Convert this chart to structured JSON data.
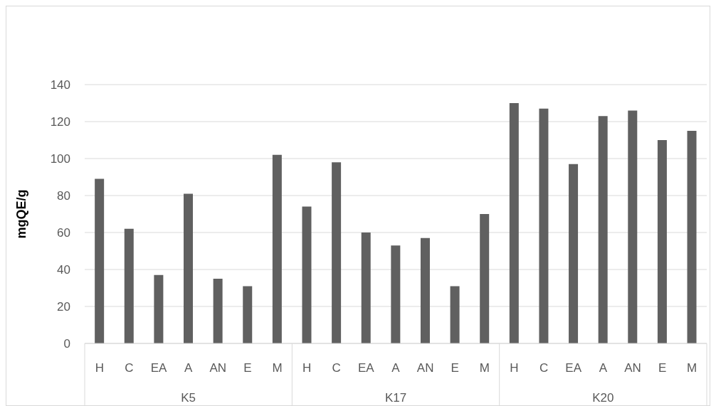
{
  "chart_data": {
    "type": "bar",
    "ylabel": "mgQE/g",
    "categories": [
      "H",
      "C",
      "EA",
      "A",
      "AN",
      "E",
      "M",
      "H",
      "C",
      "EA",
      "A",
      "AN",
      "E",
      "M",
      "H",
      "C",
      "EA",
      "A",
      "AN",
      "E",
      "M"
    ],
    "values": [
      89,
      62,
      37,
      81,
      35,
      31,
      102,
      74,
      98,
      60,
      53,
      57,
      31,
      70,
      130,
      127,
      97,
      123,
      126,
      110,
      115
    ],
    "color": "#606060",
    "ylim": [
      0,
      140
    ],
    "yticks": [
      0,
      20,
      40,
      60,
      80,
      100,
      120,
      140
    ],
    "grid": "y",
    "annotations": [
      "K5",
      "K17",
      "K20"
    ]
  }
}
